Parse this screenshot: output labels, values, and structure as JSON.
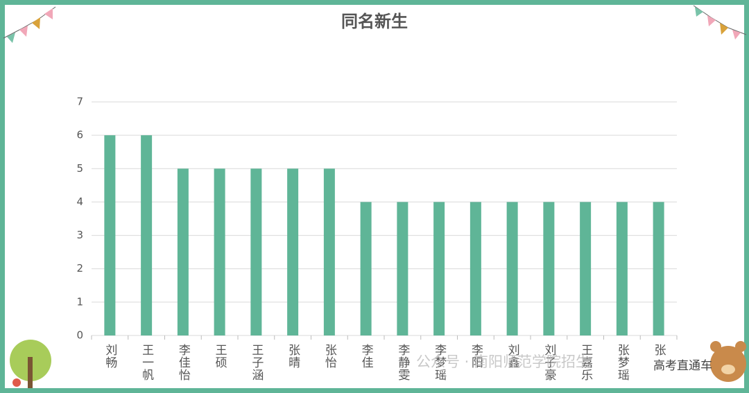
{
  "chart_data": {
    "type": "bar",
    "title": "同名新生",
    "categories": [
      "刘畅",
      "王一帆",
      "李佳怡",
      "王硕",
      "王子涵",
      "张晴",
      "张怡",
      "李佳",
      "李静雯",
      "李梦瑶",
      "李阳",
      "刘鑫",
      "刘子豪",
      "王嘉乐",
      "张梦瑶",
      "张"
    ],
    "values": [
      6,
      6,
      5,
      5,
      5,
      5,
      5,
      4,
      4,
      4,
      4,
      4,
      4,
      4,
      4,
      4
    ],
    "color": "#5fb597",
    "ylim": [
      0,
      7
    ],
    "yticks": [
      0,
      1,
      2,
      3,
      4,
      5,
      6,
      7
    ],
    "grid": true,
    "watermarks": [
      "公众号 · 南阳师范学院招生",
      "高考直通车"
    ]
  }
}
